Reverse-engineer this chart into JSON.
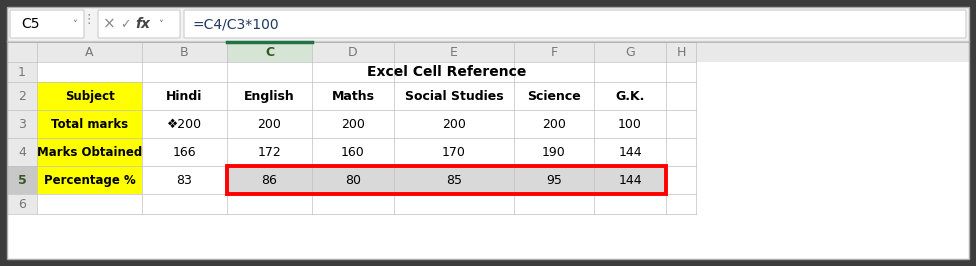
{
  "formula_bar_cell": "C5",
  "formula_bar_formula": "=C4/C3*100",
  "title_row": "Excel Cell Reference",
  "col_headers": [
    "A",
    "B",
    "C",
    "D",
    "E",
    "F",
    "G",
    "H"
  ],
  "row_numbers": [
    "1",
    "2",
    "3",
    "4",
    "5",
    "6"
  ],
  "subjects": [
    "Subject",
    "Hindi",
    "English",
    "Maths",
    "Social Studies",
    "Science",
    "G.K."
  ],
  "total_marks": [
    "Total marks",
    "❖200",
    "200",
    "200",
    "200",
    "200",
    "100"
  ],
  "marks_obtained": [
    "Marks Obtained",
    "166",
    "172",
    "160",
    "170",
    "190",
    "144"
  ],
  "percentage": [
    "Percentage %",
    "83",
    "86",
    "80",
    "85",
    "95",
    "144"
  ],
  "yellow_bg": "#FFFF00",
  "header_bg": "#E9E9E9",
  "row5_header_bg": "#CBCBCB",
  "light_grey_bg": "#D9D9D9",
  "cell_border": "#C0C0C0",
  "red_border": "#FF0000",
  "green_top": "#217346",
  "green_header_col": "#375623",
  "formula_bar_bg": "#F3F3F3",
  "outer_bg": "#3C3C3C",
  "white": "#FFFFFF",
  "col_header_selected_bg": "#E8F0E8",
  "row5_num_bg": "#C8C8C8"
}
